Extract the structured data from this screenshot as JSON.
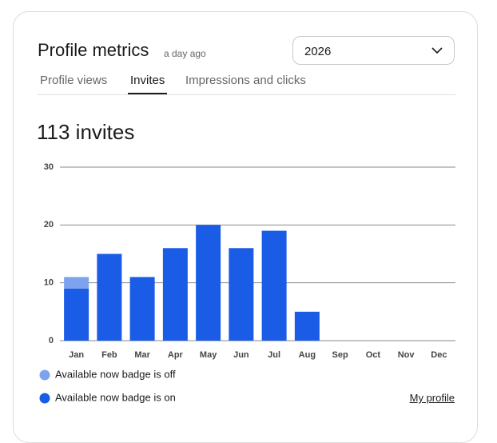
{
  "header": {
    "title": "Profile metrics",
    "timestamp": "a day ago",
    "year": "2026"
  },
  "tabs": [
    "Profile views",
    "Invites",
    "Impressions and clicks"
  ],
  "active_tab": 1,
  "headline": "113 invites",
  "link": "My profile",
  "chart_data": {
    "type": "bar",
    "stacked": true,
    "categories": [
      "Jan",
      "Feb",
      "Mar",
      "Apr",
      "May",
      "Jun",
      "Jul",
      "Aug",
      "Sep",
      "Oct",
      "Nov",
      "Dec"
    ],
    "series": [
      {
        "name": "Available now badge is on",
        "color": "#1a5ce6",
        "values": [
          9,
          15,
          11,
          16,
          20,
          16,
          19,
          5,
          0,
          0,
          0,
          0
        ]
      },
      {
        "name": "Available now badge is off",
        "color": "#7ea3ee",
        "values": [
          2,
          0,
          0,
          0,
          0,
          0,
          0,
          0,
          0,
          0,
          0,
          0
        ]
      }
    ],
    "ylim": [
      0,
      30
    ],
    "yticks": [
      0,
      10,
      20,
      30
    ],
    "grid": true
  }
}
